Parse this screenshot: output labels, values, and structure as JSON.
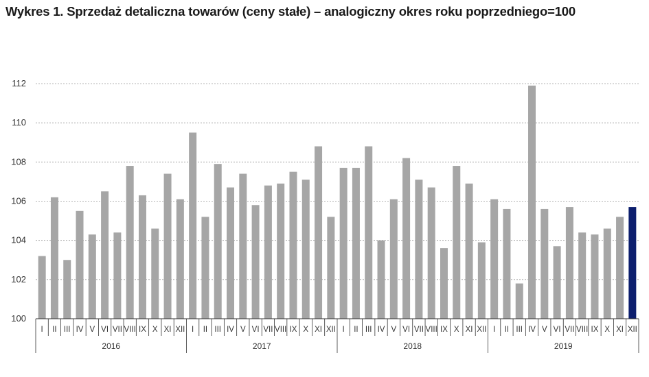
{
  "title": "Wykres 1. Sprzedaż detaliczna towarów (ceny stałe) – analogiczny okres roku poprzedniego=100",
  "colors": {
    "bar": "#a6a6a6",
    "highlight": "#0d1f6e",
    "grid": "#9a9a9a",
    "axis": "#333333"
  },
  "chart_data": {
    "type": "bar",
    "title": "Wykres 1. Sprzedaż detaliczna towarów (ceny stałe) – analogiczny okres roku poprzedniego=100",
    "xlabel": "",
    "ylabel": "",
    "ylim": [
      100,
      112
    ],
    "yticks": [
      100,
      102,
      104,
      106,
      108,
      110,
      112
    ],
    "grid": true,
    "legend": "none",
    "years": [
      "2016",
      "2017",
      "2018",
      "2019"
    ],
    "months": [
      "I",
      "II",
      "III",
      "IV",
      "V",
      "VI",
      "VII",
      "VIII",
      "IX",
      "X",
      "XI",
      "XII"
    ],
    "values": [
      103.2,
      106.2,
      103.0,
      105.5,
      104.3,
      106.5,
      104.4,
      107.8,
      106.3,
      104.6,
      107.4,
      106.1,
      109.5,
      105.2,
      107.9,
      106.7,
      107.4,
      105.8,
      106.8,
      106.9,
      107.5,
      107.1,
      108.8,
      105.2,
      107.7,
      107.7,
      108.8,
      104.0,
      106.1,
      108.2,
      107.1,
      106.7,
      103.6,
      107.8,
      106.9,
      103.9,
      106.1,
      105.6,
      101.8,
      111.9,
      105.6,
      103.7,
      105.7,
      104.4,
      104.3,
      104.6,
      105.2,
      105.7
    ],
    "highlight_index": 47
  }
}
